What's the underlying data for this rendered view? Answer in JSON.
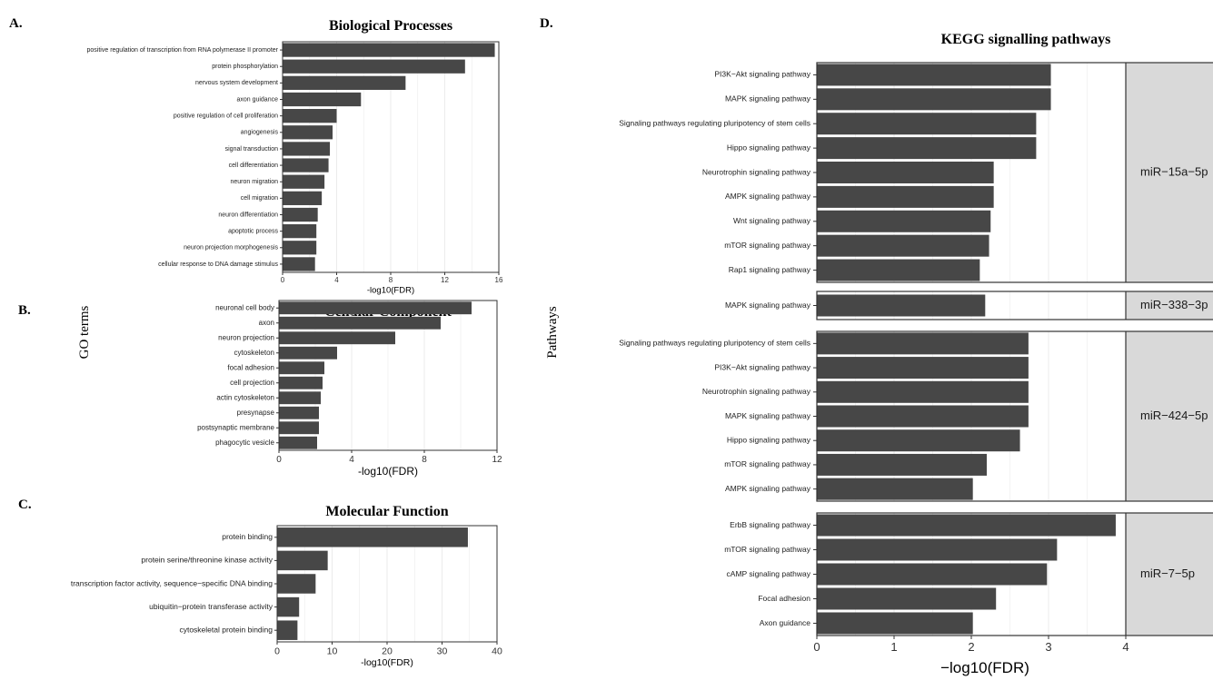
{
  "panels": {
    "a": "A.",
    "b": "B.",
    "c": "C.",
    "d": "D."
  },
  "go_ylabel": "GO terms",
  "colors": {
    "bar": "#474747",
    "grid": "#ebebeb",
    "strip": "#d9d9d9",
    "axis": "#333333"
  },
  "chart_data": [
    {
      "id": "bp",
      "type": "bar",
      "orientation": "horizontal",
      "title": "Biological Processes",
      "xlabel": "-log10(FDR)",
      "xlim": [
        0,
        16
      ],
      "xticks": [
        0,
        4,
        8,
        12,
        16
      ],
      "grid": true,
      "categories": [
        "positive regulation of transcription from RNA polymerase II promoter",
        "protein phosphorylation",
        "nervous system development",
        "axon guidance",
        "positive regulation of cell proliferation",
        "angiogenesis",
        "signal transduction",
        "cell differentiation",
        "neuron migration",
        "cell migration",
        "neuron differentiation",
        "apoptotic process",
        "neuron projection morphogenesis",
        "cellular response to DNA damage stimulus"
      ],
      "values": [
        15.7,
        13.5,
        9.1,
        5.8,
        4.0,
        3.7,
        3.5,
        3.4,
        3.1,
        2.9,
        2.6,
        2.5,
        2.5,
        2.4
      ]
    },
    {
      "id": "cc",
      "type": "bar",
      "orientation": "horizontal",
      "title": "Cellular Component",
      "xlabel": "-log10(FDR)",
      "xlim": [
        0,
        12
      ],
      "xticks": [
        0,
        4,
        8,
        12
      ],
      "grid": true,
      "categories": [
        "neuronal cell body",
        "axon",
        "neuron projection",
        "cytoskeleton",
        "focal adhesion",
        "cell projection",
        "actin cytoskeleton",
        "presynapse",
        "postsynaptic membrane",
        "phagocytic vesicle"
      ],
      "values": [
        10.6,
        8.9,
        6.4,
        3.2,
        2.5,
        2.4,
        2.3,
        2.2,
        2.2,
        2.1
      ]
    },
    {
      "id": "mf",
      "type": "bar",
      "orientation": "horizontal",
      "title": "Molecular Function",
      "xlabel": "-log10(FDR)",
      "xlim": [
        0,
        40
      ],
      "xticks": [
        0,
        10,
        20,
        30,
        40
      ],
      "grid": true,
      "categories": [
        "protein binding",
        "protein serine/threonine kinase activity",
        "transcription factor activity, sequence−specific DNA binding",
        "ubiquitin−protein transferase activity",
        "cytoskeletal protein binding"
      ],
      "values": [
        34.7,
        9.2,
        7.0,
        4.0,
        3.7
      ]
    },
    {
      "id": "kegg",
      "type": "bar",
      "orientation": "horizontal",
      "title": "KEGG signalling pathways",
      "ylabel": "Pathways",
      "xlabel": "−log10(FDR)",
      "xlim": [
        0,
        4
      ],
      "xticks": [
        0,
        1,
        2,
        3,
        4
      ],
      "grid": true,
      "facets": [
        {
          "name": "miR−15a−5p",
          "categories": [
            "PI3K−Akt signaling pathway",
            "MAPK signaling pathway",
            "Signaling pathways regulating pluripotency of stem cells",
            "Hippo signaling pathway",
            "Neurotrophin signaling pathway",
            "AMPK signaling pathway",
            "Wnt signaling pathway",
            "mTOR signaling pathway",
            "Rap1 signaling pathway"
          ],
          "values": [
            3.03,
            3.03,
            2.84,
            2.84,
            2.29,
            2.29,
            2.25,
            2.23,
            2.11
          ]
        },
        {
          "name": "miR−338−3p",
          "categories": [
            "MAPK signaling pathway"
          ],
          "values": [
            2.18
          ]
        },
        {
          "name": "miR−424−5p",
          "categories": [
            "Signaling pathways regulating pluripotency of stem cells",
            "PI3K−Akt signaling pathway",
            "Neurotrophin signaling pathway",
            "MAPK signaling pathway",
            "Hippo signaling pathway",
            "mTOR signaling pathway",
            "AMPK signaling pathway"
          ],
          "values": [
            2.74,
            2.74,
            2.74,
            2.74,
            2.63,
            2.2,
            2.02
          ]
        },
        {
          "name": "miR−7−5p",
          "categories": [
            "ErbB signaling pathway",
            "mTOR signaling pathway",
            "cAMP signaling pathway",
            "Focal adhesion",
            "Axon guidance"
          ],
          "values": [
            3.87,
            3.11,
            2.98,
            2.32,
            2.02
          ]
        }
      ]
    }
  ]
}
